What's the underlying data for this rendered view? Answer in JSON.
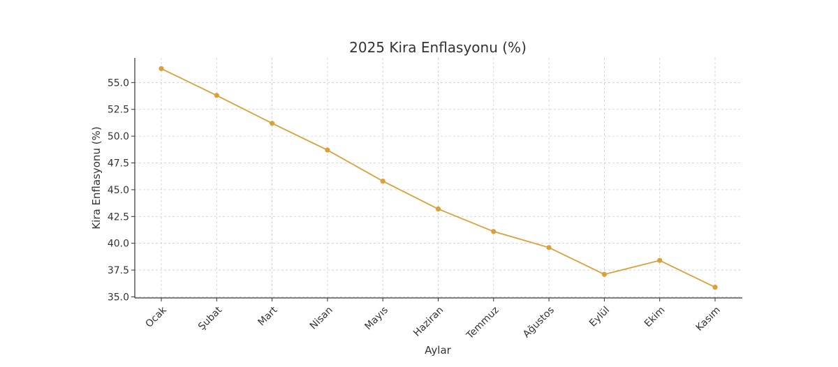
{
  "chart_data": {
    "type": "line",
    "title": "2025 Kira Enflasyonu (%)",
    "xlabel": "Aylar",
    "ylabel": "Kira Enflasyonu (%)",
    "categories": [
      "Ocak",
      "Şubat",
      "Mart",
      "Nisan",
      "Mayıs",
      "Haziran",
      "Temmuz",
      "Ağustos",
      "Eylül",
      "Ekim",
      "Kasım"
    ],
    "series": [
      {
        "values": [
          56.3,
          53.8,
          51.2,
          48.7,
          45.8,
          43.2,
          41.1,
          39.6,
          37.1,
          38.4,
          35.9
        ]
      }
    ],
    "ylim": [
      34.9,
      57.3
    ],
    "yticks": [
      "35.0",
      "37.5",
      "40.0",
      "42.5",
      "45.0",
      "47.5",
      "50.0",
      "52.5",
      "55.0"
    ],
    "grid": true,
    "line_color": "#DAA03A"
  }
}
